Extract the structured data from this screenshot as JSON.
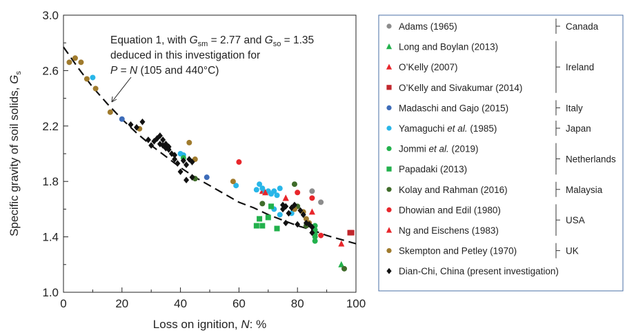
{
  "chart_data": {
    "type": "scatter",
    "xlabel_main": "Loss on ignition, ",
    "xlabel_var": "N",
    "xlabel_unit": ": %",
    "ylabel_main": "Specific gravity of soil solids, ",
    "ylabel_var": "G",
    "ylabel_sub": "s",
    "xlim": [
      0,
      100
    ],
    "ylim": [
      1.0,
      3.0
    ],
    "xticks": [
      "0",
      "20",
      "40",
      "60",
      "80",
      "100"
    ],
    "yticks": [
      "1.0",
      "1.4",
      "1.8",
      "2.2",
      "2.6",
      "3.0"
    ],
    "xtick_values": [
      0,
      20,
      40,
      60,
      80,
      100
    ],
    "ytick_values": [
      1.0,
      1.4,
      1.8,
      2.2,
      2.6,
      3.0
    ],
    "grid": false,
    "legend_placement": "right",
    "annotation": {
      "line1_a": "Equation 1, with ",
      "line1_gsm_var": "G",
      "line1_gsm_sub": "sm",
      "line1_b": " = 2.77 and ",
      "line1_gso_var": "G",
      "line1_gso_sub": "so",
      "line1_c": " = 1.35",
      "line2": "deduced in this investigation for",
      "line3_var1": "P",
      "line3_mid": " = ",
      "line3_var2": "N",
      "line3_rest": " (105 and 440°C)"
    },
    "equation_curve": {
      "style": "dashed",
      "x": [
        0,
        5,
        10,
        15,
        20,
        25,
        30,
        35,
        40,
        45,
        50,
        55,
        60,
        65,
        70,
        75,
        80,
        85,
        90,
        95,
        100
      ],
      "y": [
        2.77,
        2.62,
        2.48,
        2.36,
        2.25,
        2.15,
        2.06,
        1.98,
        1.9,
        1.83,
        1.77,
        1.71,
        1.65,
        1.61,
        1.56,
        1.52,
        1.48,
        1.45,
        1.41,
        1.38,
        1.35
      ]
    },
    "series": [
      {
        "name": "Adams (1965)",
        "group": "Canada",
        "marker": "circle",
        "color": "#8c8c8c",
        "points": [
          [
            85,
            1.73
          ],
          [
            88,
            1.65
          ]
        ]
      },
      {
        "name": "Long and Boylan (2013)",
        "group": "Ireland",
        "marker": "triangle",
        "color": "#22b14c",
        "points": [
          [
            95,
            1.2
          ]
        ]
      },
      {
        "name": "O’Kelly (2007)",
        "group": "Ireland",
        "marker": "triangle",
        "color": "#e8262b",
        "points": [
          [
            68,
            1.73
          ],
          [
            76,
            1.68
          ],
          [
            85,
            1.58
          ],
          [
            95,
            1.35
          ]
        ]
      },
      {
        "name": "O’Kelly and Sivakumar (2014)",
        "group": "Ireland",
        "marker": "square",
        "color": "#c1272d",
        "points": [
          [
            98,
            1.43
          ],
          [
            98.5,
            1.43
          ]
        ]
      },
      {
        "name": "Madaschi and Gajo (2015)",
        "group": "Italy",
        "marker": "circle",
        "color": "#3d6cb9",
        "points": [
          [
            20,
            2.25
          ],
          [
            49,
            1.83
          ]
        ]
      },
      {
        "name": "Yamaguchi et al. (1985)",
        "name_a": "Yamaguchi ",
        "name_i": "et al.",
        "name_b": " (1985)",
        "group": "Japan",
        "marker": "circle",
        "color": "#29b6e8",
        "points": [
          [
            10,
            2.55
          ],
          [
            40,
            2.0
          ],
          [
            41,
            1.99
          ],
          [
            59,
            1.77
          ],
          [
            66,
            1.74
          ],
          [
            67,
            1.78
          ],
          [
            68,
            1.75
          ],
          [
            69,
            1.72
          ],
          [
            70,
            1.73
          ],
          [
            71,
            1.71
          ],
          [
            72,
            1.73
          ],
          [
            73,
            1.7
          ],
          [
            74,
            1.75
          ],
          [
            78,
            1.57
          ],
          [
            72,
            1.6
          ],
          [
            74,
            1.56
          ]
        ]
      },
      {
        "name": "Jommi et al. (2019)",
        "name_a": "Jommi ",
        "name_i": "et al.",
        "name_b": " (2019)",
        "group": "Netherlands",
        "marker": "circle",
        "color": "#22b14c",
        "points": [
          [
            41,
            1.97
          ],
          [
            86,
            1.48
          ],
          [
            86,
            1.45
          ],
          [
            86,
            1.42
          ],
          [
            86,
            1.4
          ],
          [
            86,
            1.37
          ]
        ]
      },
      {
        "name": "Papadaki (2013)",
        "group": "Netherlands",
        "marker": "square",
        "color": "#22b14c",
        "points": [
          [
            66,
            1.48
          ],
          [
            67,
            1.53
          ],
          [
            68,
            1.48
          ],
          [
            70,
            1.54
          ],
          [
            73,
            1.46
          ],
          [
            71,
            1.62
          ]
        ]
      },
      {
        "name": "Kolay and Rahman (2016)",
        "group": "Malaysia",
        "marker": "circle",
        "color": "#3f6b2a",
        "points": [
          [
            45,
            1.82
          ],
          [
            68,
            1.64
          ],
          [
            79,
            1.78
          ],
          [
            80,
            1.62
          ],
          [
            83,
            1.48
          ],
          [
            96,
            1.17
          ]
        ]
      },
      {
        "name": "Dhowian and Edil (1980)",
        "group": "USA",
        "marker": "circle",
        "color": "#e8262b",
        "points": [
          [
            60,
            1.94
          ],
          [
            80,
            1.72
          ],
          [
            85,
            1.68
          ],
          [
            88,
            1.41
          ]
        ]
      },
      {
        "name": "Ng and Eischens (1983)",
        "group": "USA",
        "marker": "triangle",
        "color": "#e8262b",
        "points": [
          [
            69,
            1.72
          ],
          [
            76,
            1.68
          ]
        ]
      },
      {
        "name": "Skempton and Petley (1970)",
        "group": "UK",
        "marker": "circle",
        "color": "#a07b2d",
        "points": [
          [
            2,
            2.66
          ],
          [
            4,
            2.69
          ],
          [
            6,
            2.66
          ],
          [
            8,
            2.54
          ],
          [
            11,
            2.47
          ],
          [
            16,
            2.3
          ],
          [
            26,
            2.18
          ],
          [
            43,
            2.08
          ],
          [
            45,
            1.96
          ],
          [
            58,
            1.8
          ],
          [
            79,
            1.6
          ],
          [
            82,
            1.58
          ],
          [
            83,
            1.53
          ],
          [
            84,
            1.5
          ]
        ]
      },
      {
        "name": "Dian-Chi, China (present investigation)",
        "group": "",
        "marker": "diamond",
        "color": "#111111",
        "points": [
          [
            23,
            2.21
          ],
          [
            25,
            2.19
          ],
          [
            27,
            2.23
          ],
          [
            29,
            2.1
          ],
          [
            30,
            2.06
          ],
          [
            31,
            2.09
          ],
          [
            32,
            2.11
          ],
          [
            33,
            2.13
          ],
          [
            33,
            2.07
          ],
          [
            34,
            2.06
          ],
          [
            34,
            2.1
          ],
          [
            35,
            2.04
          ],
          [
            35,
            2.07
          ],
          [
            36,
            2.05
          ],
          [
            36,
            2.03
          ],
          [
            37,
            2.0
          ],
          [
            38,
            1.99
          ],
          [
            38,
            1.96
          ],
          [
            39,
            1.93
          ],
          [
            40,
            1.87
          ],
          [
            41,
            1.95
          ],
          [
            42,
            1.92
          ],
          [
            42,
            1.81
          ],
          [
            43,
            1.96
          ],
          [
            44,
            1.83
          ],
          [
            44,
            1.94
          ],
          [
            75,
            1.6
          ],
          [
            75,
            1.63
          ],
          [
            76,
            1.62
          ],
          [
            76,
            1.5
          ],
          [
            77,
            1.57
          ],
          [
            78,
            1.61
          ],
          [
            79,
            1.63
          ],
          [
            80,
            1.49
          ],
          [
            81,
            1.59
          ],
          [
            82,
            1.56
          ],
          [
            83,
            1.5
          ],
          [
            84,
            1.49
          ],
          [
            85,
            1.47
          ],
          [
            85,
            1.43
          ]
        ]
      }
    ],
    "legend_groups": [
      "Canada",
      "Ireland",
      "Italy",
      "Japan",
      "Netherlands",
      "Malaysia",
      "USA",
      "UK"
    ]
  }
}
